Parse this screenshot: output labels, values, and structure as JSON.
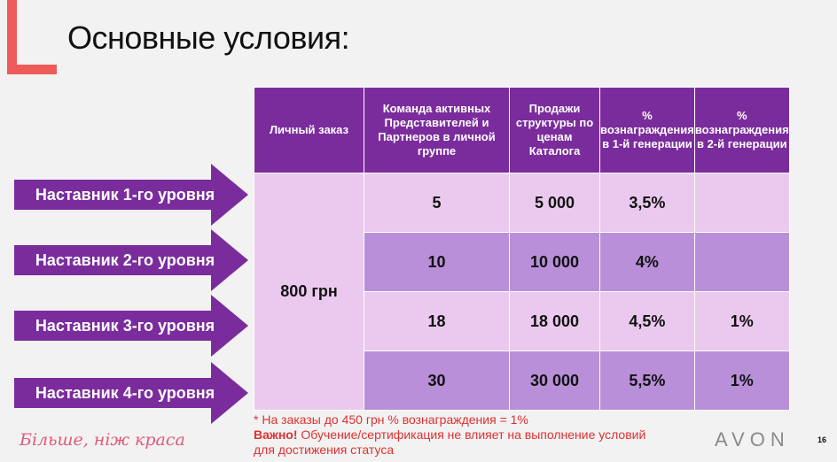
{
  "title": "Основные условия:",
  "table": {
    "headers": [
      "Личный заказ",
      "Команда активных Представителей и Партнеров в личной группе",
      "Продажи структуры по ценам Каталога",
      "% вознаграждения в 1-й генерации",
      "% вознаграждения в 2-й генерации"
    ],
    "personal_order": "800 грн",
    "rows": [
      {
        "team": "5",
        "sales": "5 000",
        "gen1": "3,5%",
        "gen2": ""
      },
      {
        "team": "10",
        "sales": "10 000",
        "gen1": "4%",
        "gen2": ""
      },
      {
        "team": "18",
        "sales": "18 000",
        "gen1": "4,5%",
        "gen2": "1%"
      },
      {
        "team": "30",
        "sales": "30 000",
        "gen1": "5,5%",
        "gen2": "1%"
      }
    ]
  },
  "levels": [
    "Наставник 1-го уровня",
    "Наставник 2-го уровня",
    "Наставник 3-го уровня",
    "Наставник 4-го уровня"
  ],
  "footnote": {
    "line1": "* На заказы до 450 грн % вознаграждения = 1%",
    "important_label": "Важно!",
    "line2": " Обучение/сертификация не влияет на выполнение условий",
    "line3": "для достижения статуса"
  },
  "tagline": "Більше, ніж краса",
  "logo": "AVON",
  "page_number": "16",
  "colors": {
    "header": "#7b2c9c",
    "row_light": "#ebc9ee",
    "row_dark": "#b88fd8",
    "arrow": "#7b2c9c",
    "accent": "#ef5a5a"
  }
}
